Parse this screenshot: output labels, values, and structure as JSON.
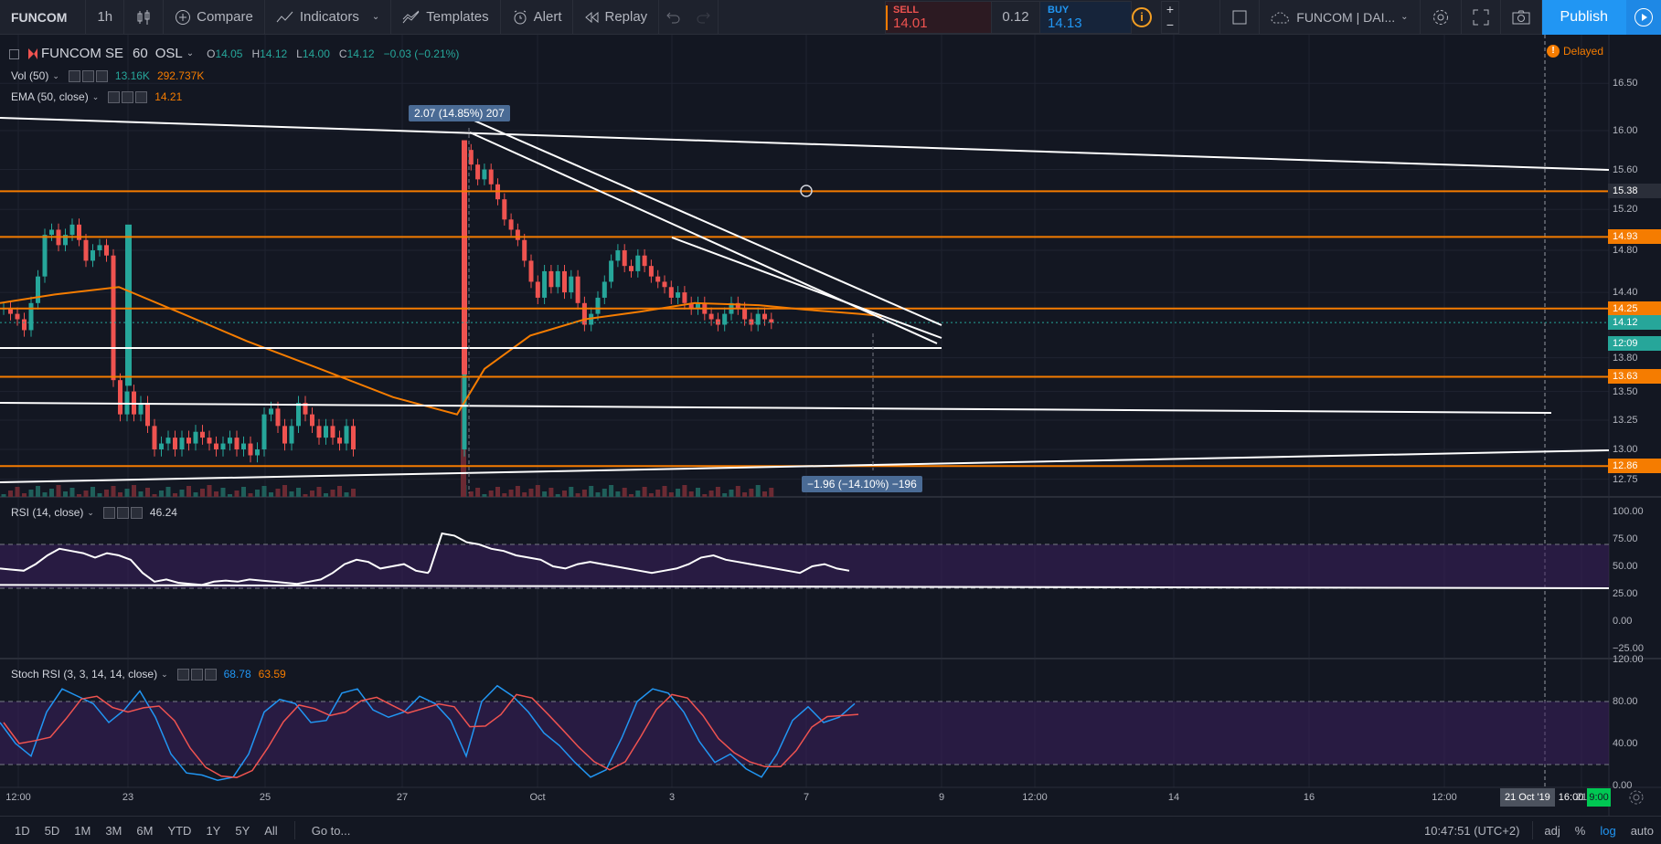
{
  "toolbar": {
    "symbol": "FUNCOM",
    "interval": "1h",
    "compare": "Compare",
    "indicators": "Indicators",
    "templates": "Templates",
    "alert": "Alert",
    "replay": "Replay"
  },
  "trade": {
    "sell_label": "SELL",
    "sell_price": "14.01",
    "spread": "0.12",
    "buy_label": "BUY",
    "buy_price": "14.13"
  },
  "right_toolbar": {
    "layout_name": "FUNCOM | DAI...",
    "publish": "Publish"
  },
  "legend": {
    "symbol": "FUNCOM SE",
    "interval": "60",
    "exchange": "OSL",
    "open_label": "O",
    "open": "14.05",
    "high_label": "H",
    "high": "14.12",
    "low_label": "L",
    "low": "14.00",
    "close_label": "C",
    "close": "14.12",
    "change": "−0.03 (−0.21%)",
    "delayed": "Delayed",
    "vol_name": "Vol (50)",
    "vol_1": "13.16K",
    "vol_2": "292.737K",
    "ema_name": "EMA (50, close)",
    "ema_val": "14.21",
    "rsi_name": "RSI (14, close)",
    "rsi_val": "46.24",
    "stoch_name": "Stoch RSI (3, 3, 14, 14, close)",
    "stoch_k": "68.78",
    "stoch_d": "63.59"
  },
  "annotations": {
    "measure_up": "2.07 (14.85%) 207",
    "measure_down": "−1.96 (−14.10%) −196"
  },
  "price_axis": [
    "16.50",
    "16.00",
    "15.60",
    "15.20",
    "14.80",
    "14.40",
    "13.80",
    "13.50",
    "13.25",
    "13.00",
    "12.75"
  ],
  "price_badges": [
    {
      "text": "15.38",
      "color": "#2a2e39",
      "value": 15.38
    },
    {
      "text": "14.93",
      "color": "#f57c00",
      "value": 14.93
    },
    {
      "text": "14.25",
      "color": "#f57c00",
      "value": 14.25
    },
    {
      "text": "14.12",
      "color": "#26a69a",
      "value": 14.12
    },
    {
      "text": "12:09",
      "color": "#26a69a",
      "value": 14.0
    },
    {
      "text": "13.63",
      "color": "#f57c00",
      "value": 13.63
    },
    {
      "text": "12.86",
      "color": "#f57c00",
      "value": 12.86
    }
  ],
  "rsi_axis": [
    "100.00",
    "75.00",
    "50.00",
    "25.00",
    "0.00",
    "−25.00"
  ],
  "stoch_axis": [
    "120.00",
    "80.00",
    "40.00",
    "0.00"
  ],
  "time_axis": [
    "12:00",
    "23",
    "25",
    "27",
    "Oct",
    "3",
    "7",
    "9",
    "12:00",
    "14",
    "16",
    "12:00",
    "21"
  ],
  "time_cursor": "21 Oct '19",
  "time_cursor2": "16:00",
  "time_cursor3": "9:00",
  "ranges": [
    "1D",
    "5D",
    "1M",
    "3M",
    "6M",
    "YTD",
    "1Y",
    "5Y",
    "All"
  ],
  "goto": "Go to...",
  "clock": "10:47:51 (UTC+2)",
  "opts": [
    "adj",
    "%",
    "log",
    "auto"
  ],
  "colors": {
    "up": "#26a69a",
    "down": "#ef5350",
    "orange": "#f57c00",
    "blue": "#2196f3"
  }
}
